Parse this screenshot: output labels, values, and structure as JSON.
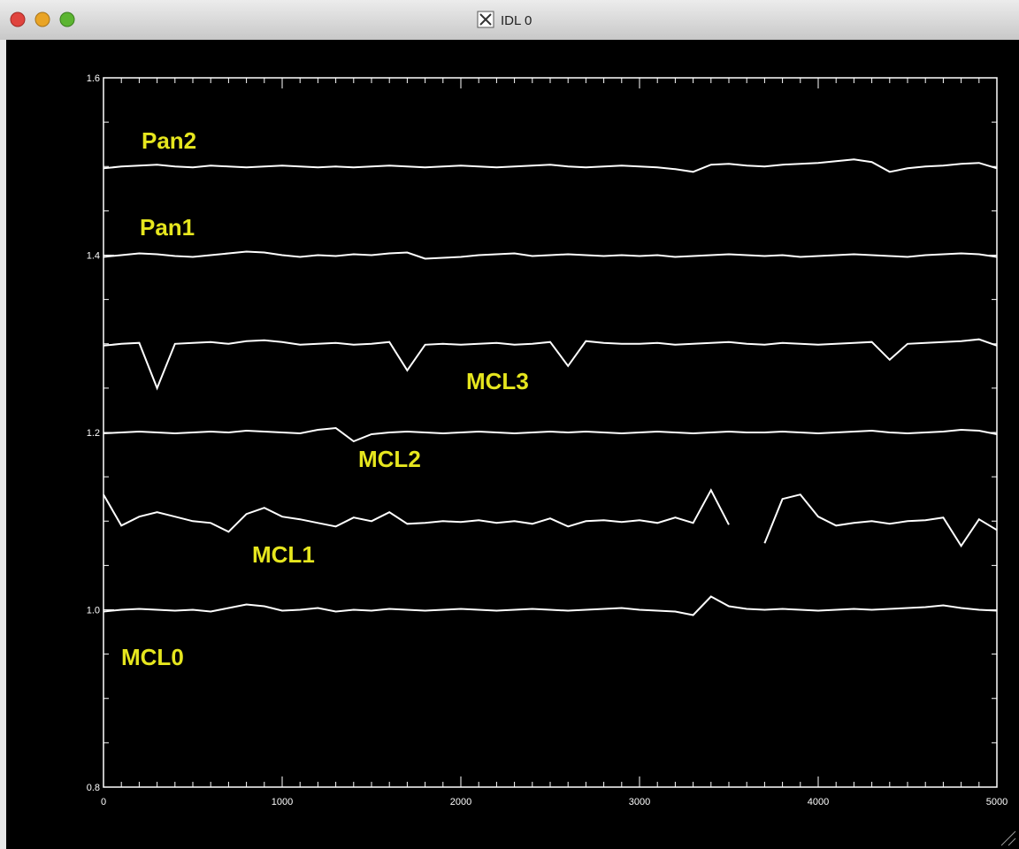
{
  "window": {
    "title": "IDL 0"
  },
  "chart_data": {
    "type": "line",
    "x": [
      0,
      100,
      200,
      300,
      400,
      500,
      600,
      700,
      800,
      900,
      1000,
      1100,
      1200,
      1300,
      1400,
      1500,
      1600,
      1700,
      1800,
      1900,
      2000,
      2100,
      2200,
      2300,
      2400,
      2500,
      2600,
      2700,
      2800,
      2900,
      3000,
      3100,
      3200,
      3300,
      3400,
      3500,
      3600,
      3700,
      3800,
      3900,
      4000,
      4100,
      4200,
      4300,
      4400,
      4500,
      4600,
      4700,
      4800,
      4900,
      5000
    ],
    "xlim": [
      0,
      5000
    ],
    "xticks": [
      0,
      1000,
      2000,
      3000,
      4000,
      5000
    ],
    "ylim": [
      0.8,
      1.6
    ],
    "yticks": [
      0.8,
      {
        "value": 1,
        "label": "1.0"
      },
      1.2,
      1.4,
      1.6
    ],
    "label_color": "#e6e61e",
    "series": [
      {
        "name": "Pan2",
        "color": "#ffffff",
        "values": [
          1.498,
          1.5,
          1.501,
          1.502,
          1.5,
          1.499,
          1.501,
          1.5,
          1.499,
          1.5,
          1.501,
          1.5,
          1.499,
          1.5,
          1.499,
          1.5,
          1.501,
          1.5,
          1.499,
          1.5,
          1.501,
          1.5,
          1.499,
          1.5,
          1.501,
          1.502,
          1.5,
          1.499,
          1.5,
          1.501,
          1.5,
          1.499,
          1.497,
          1.494,
          1.502,
          1.503,
          1.501,
          1.5,
          1.502,
          1.503,
          1.504,
          1.506,
          1.508,
          1.505,
          1.494,
          1.498,
          1.5,
          1.501,
          1.503,
          1.504,
          1.498
        ]
      },
      {
        "name": "Pan1",
        "color": "#ffffff",
        "values": [
          1.398,
          1.4,
          1.402,
          1.401,
          1.399,
          1.398,
          1.4,
          1.402,
          1.404,
          1.403,
          1.4,
          1.398,
          1.4,
          1.399,
          1.401,
          1.4,
          1.402,
          1.403,
          1.396,
          1.397,
          1.398,
          1.4,
          1.401,
          1.402,
          1.399,
          1.4,
          1.401,
          1.4,
          1.399,
          1.4,
          1.399,
          1.4,
          1.398,
          1.399,
          1.4,
          1.401,
          1.4,
          1.399,
          1.4,
          1.398,
          1.399,
          1.4,
          1.401,
          1.4,
          1.399,
          1.398,
          1.4,
          1.401,
          1.402,
          1.401,
          1.398
        ]
      },
      {
        "name": "MCL3",
        "color": "#ffffff",
        "values": [
          1.298,
          1.3,
          1.301,
          1.25,
          1.3,
          1.301,
          1.302,
          1.3,
          1.303,
          1.304,
          1.302,
          1.299,
          1.3,
          1.301,
          1.299,
          1.3,
          1.302,
          1.27,
          1.299,
          1.3,
          1.299,
          1.3,
          1.301,
          1.299,
          1.3,
          1.302,
          1.275,
          1.303,
          1.301,
          1.3,
          1.3,
          1.301,
          1.299,
          1.3,
          1.301,
          1.302,
          1.3,
          1.299,
          1.301,
          1.3,
          1.299,
          1.3,
          1.301,
          1.302,
          1.282,
          1.3,
          1.301,
          1.302,
          1.303,
          1.305,
          1.298
        ]
      },
      {
        "name": "MCL2",
        "color": "#ffffff",
        "values": [
          1.199,
          1.2,
          1.201,
          1.2,
          1.199,
          1.2,
          1.201,
          1.2,
          1.202,
          1.201,
          1.2,
          1.199,
          1.203,
          1.205,
          1.19,
          1.198,
          1.2,
          1.201,
          1.2,
          1.199,
          1.2,
          1.201,
          1.2,
          1.199,
          1.2,
          1.201,
          1.2,
          1.201,
          1.2,
          1.199,
          1.2,
          1.201,
          1.2,
          1.199,
          1.2,
          1.201,
          1.2,
          1.2,
          1.201,
          1.2,
          1.199,
          1.2,
          1.201,
          1.202,
          1.2,
          1.199,
          1.2,
          1.201,
          1.203,
          1.202,
          1.198
        ]
      },
      {
        "name": "MCL1",
        "color": "#ffffff",
        "values": [
          1.13,
          1.095,
          1.105,
          1.11,
          1.105,
          1.1,
          1.098,
          1.088,
          1.108,
          1.115,
          1.105,
          1.102,
          1.098,
          1.094,
          1.104,
          1.1,
          1.11,
          1.097,
          1.098,
          1.1,
          1.099,
          1.101,
          1.098,
          1.1,
          1.097,
          1.103,
          1.094,
          1.1,
          1.101,
          1.099,
          1.101,
          1.098,
          1.104,
          1.098,
          1.135,
          1.096,
          null,
          1.075,
          1.125,
          1.13,
          1.105,
          1.095,
          1.098,
          1.1,
          1.097,
          1.1,
          1.101,
          1.104,
          1.072,
          1.102,
          1.09
        ]
      },
      {
        "name": "MCL0",
        "color": "#ffffff",
        "values": [
          0.998,
          1.0,
          1.001,
          1.0,
          0.999,
          1.0,
          0.998,
          1.002,
          1.006,
          1.004,
          0.999,
          1.0,
          1.002,
          0.998,
          1.0,
          0.999,
          1.001,
          1.0,
          0.999,
          1.0,
          1.001,
          1.0,
          0.999,
          1.0,
          1.001,
          1.0,
          0.999,
          1.0,
          1.001,
          1.002,
          1.0,
          0.999,
          0.998,
          0.994,
          1.015,
          1.004,
          1.001,
          1.0,
          1.001,
          1.0,
          0.999,
          1.0,
          1.001,
          1.0,
          1.001,
          1.002,
          1.003,
          1.005,
          1.002,
          1.0,
          0.999
        ]
      }
    ]
  }
}
